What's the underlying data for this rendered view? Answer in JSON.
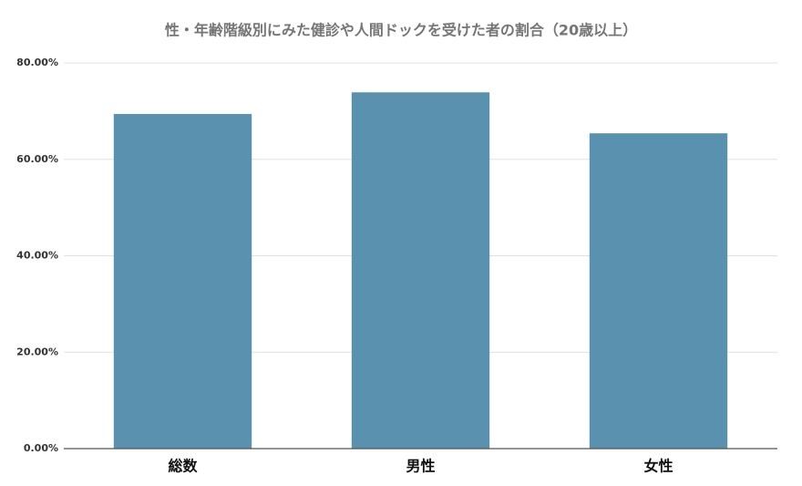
{
  "chart_data": {
    "type": "bar",
    "title": "性・年齢階級別にみた健診や人間ドックを受けた者の割合（20歳以上）",
    "categories": [
      "総数",
      "男性",
      "女性"
    ],
    "values": [
      69.4,
      73.9,
      65.4
    ],
    "color": "#5a91ae",
    "ylim": [
      0,
      80
    ],
    "yticks": [
      {
        "value": 0,
        "label": "0.00%"
      },
      {
        "value": 20,
        "label": "20.00%"
      },
      {
        "value": 40,
        "label": "40.00%"
      },
      {
        "value": 60,
        "label": "60.00%"
      },
      {
        "value": 80,
        "label": "80.00%"
      }
    ],
    "grid": true
  }
}
